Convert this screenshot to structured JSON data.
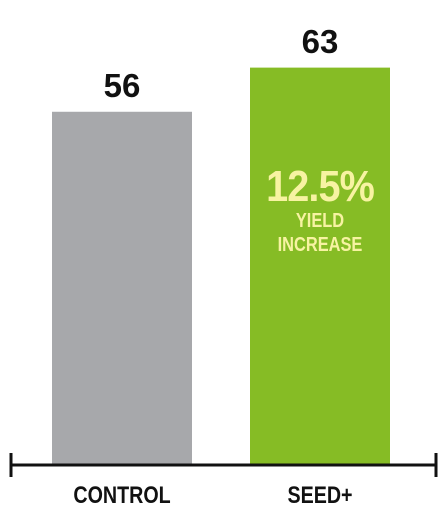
{
  "chart_data": {
    "type": "bar",
    "categories": [
      "CONTROL",
      "SEED+"
    ],
    "values": [
      56,
      63
    ],
    "data_labels": [
      "56",
      "63"
    ],
    "colors": [
      "#a7a8ab",
      "#86bc25"
    ],
    "axis_color": "#111111",
    "ylim": [
      0,
      65
    ],
    "grid": false,
    "annotation": {
      "headline": "12.5%",
      "line1": "YIELD",
      "line2": "INCREASE",
      "color": "#f7f3a2"
    }
  }
}
